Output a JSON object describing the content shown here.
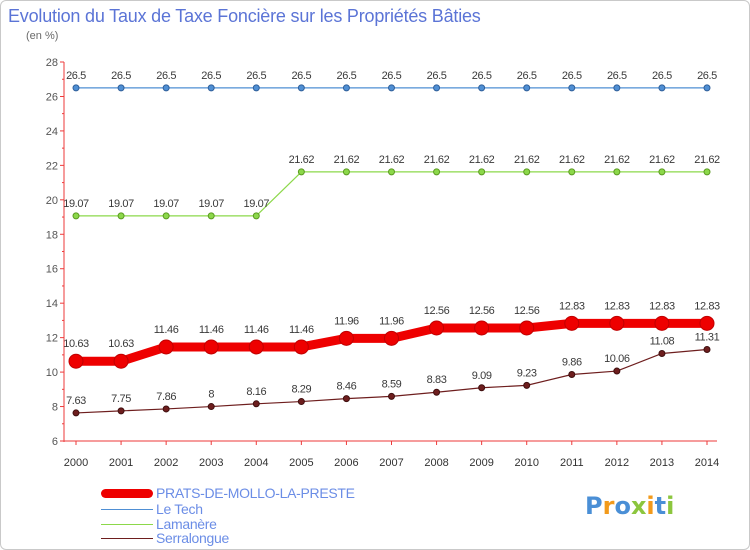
{
  "title": "Evolution du Taux de Taxe Foncière sur les Propriétés Bâties",
  "unit_label": "(en %)",
  "legend": [
    {
      "label": "PRATS-DE-MOLLO-LA-PRESTE",
      "color": "#ee0000"
    },
    {
      "label": "Le Tech",
      "color": "#4f8fd4"
    },
    {
      "label": "Lamanère",
      "color": "#8cd84a"
    },
    {
      "label": "Serralongue",
      "color": "#6e1e1e"
    }
  ],
  "logo": {
    "text": "Proxiti",
    "colors": [
      "#4a8fd6",
      "#f29a1b",
      "#4a8fd6",
      "#8cc63e",
      "#f29a1b",
      "#4a8fd6",
      "#8cc63e"
    ]
  },
  "chart_data": {
    "type": "line",
    "title": "Evolution du Taux de Taxe Foncière sur les Propriétés Bâties",
    "ylabel": "(en %)",
    "xlabel": "",
    "ylim": [
      6,
      28
    ],
    "yticks": [
      6,
      8,
      10,
      12,
      14,
      16,
      18,
      20,
      22,
      24,
      26,
      28
    ],
    "x": [
      "2000",
      "2001",
      "2002",
      "2003",
      "2004",
      "2005",
      "2006",
      "2007",
      "2008",
      "2009",
      "2010",
      "2011",
      "2012",
      "2013",
      "2014"
    ],
    "grid": false,
    "series": [
      {
        "name": "Le Tech",
        "color": "#4f8fd4",
        "values": [
          26.5,
          26.5,
          26.5,
          26.5,
          26.5,
          26.5,
          26.5,
          26.5,
          26.5,
          26.5,
          26.5,
          26.5,
          26.5,
          26.5,
          26.5
        ],
        "labels": [
          "26.5",
          "26.5",
          "26.5",
          "26.5",
          "26.5",
          "26.5",
          "26.5",
          "26.5",
          "26.5",
          "26.5",
          "26.5",
          "26.5",
          "26.5",
          "26.5",
          "26.5"
        ]
      },
      {
        "name": "Lamanère",
        "color": "#8cd84a",
        "values": [
          19.07,
          19.07,
          19.07,
          19.07,
          19.07,
          21.62,
          21.62,
          21.62,
          21.62,
          21.62,
          21.62,
          21.62,
          21.62,
          21.62,
          21.62
        ],
        "labels": [
          "19.07",
          "19.07",
          "19.07",
          "19.07",
          "19.07",
          "21.62",
          "21.62",
          "21.62",
          "21.62",
          "21.62",
          "21.62",
          "21.62",
          "21.62",
          "21.62",
          "21.62"
        ]
      },
      {
        "name": "PRATS-DE-MOLLO-LA-PRESTE",
        "color": "#ee0000",
        "values": [
          10.63,
          10.63,
          11.46,
          11.46,
          11.46,
          11.46,
          11.96,
          11.96,
          12.56,
          12.56,
          12.56,
          12.83,
          12.83,
          12.83,
          12.83
        ],
        "labels": [
          "10.63",
          "10.63",
          "11.46",
          "11.46",
          "11.46",
          "11.46",
          "11.96",
          "11.96",
          "12.56",
          "12.56",
          "12.56",
          "12.83",
          "12.83",
          "12.83",
          "12.83"
        ]
      },
      {
        "name": "Serralongue",
        "color": "#6e1e1e",
        "values": [
          7.63,
          7.75,
          7.86,
          8,
          8.16,
          8.29,
          8.46,
          8.59,
          8.83,
          9.09,
          9.23,
          9.86,
          10.06,
          11.08,
          11.31
        ],
        "labels": [
          "7.63",
          "7.75",
          "7.86",
          "8",
          "8.16",
          "8.29",
          "8.46",
          "8.59",
          "8.83",
          "9.09",
          "9.23",
          "9.86",
          "10.06",
          "11.08",
          "11.31"
        ]
      }
    ]
  }
}
